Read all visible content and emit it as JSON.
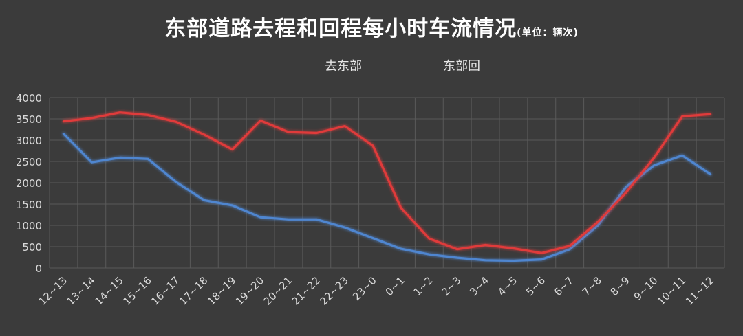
{
  "chart_data": {
    "type": "line",
    "title": "东部道路去程和回程每小时车流情况",
    "unit": "(单位：辆次)",
    "xlabel": "",
    "ylabel": "",
    "ylim": [
      0,
      4000
    ],
    "yticks": [
      "4000",
      "3500",
      "3000",
      "2500",
      "2000",
      "1500",
      "1000",
      "500",
      "0"
    ],
    "grid": true,
    "legend_position": "top",
    "categories": [
      "12~13",
      "13~14",
      "14~15",
      "15~16",
      "16~17",
      "17~18",
      "18~19",
      "19~20",
      "20~21",
      "21~22",
      "22~23",
      "23~0",
      "0~1",
      "1~2",
      "2~3",
      "3~4",
      "4~5",
      "5~6",
      "6~7",
      "7~8",
      "8~9",
      "9~10",
      "10~11",
      "11~12"
    ],
    "series": [
      {
        "name": "去东部",
        "color": "#4f86d0",
        "values": [
          3150,
          2480,
          2590,
          2560,
          2020,
          1590,
          1470,
          1190,
          1140,
          1140,
          950,
          700,
          450,
          320,
          240,
          180,
          170,
          200,
          440,
          1000,
          1900,
          2410,
          2640,
          2200
        ]
      },
      {
        "name": "东部回",
        "color": "#e03a3a",
        "values": [
          3440,
          3520,
          3650,
          3590,
          3430,
          3130,
          2780,
          3460,
          3190,
          3170,
          3330,
          2870,
          1410,
          690,
          440,
          540,
          460,
          350,
          520,
          1080,
          1770,
          2590,
          3560,
          3610
        ]
      }
    ]
  }
}
